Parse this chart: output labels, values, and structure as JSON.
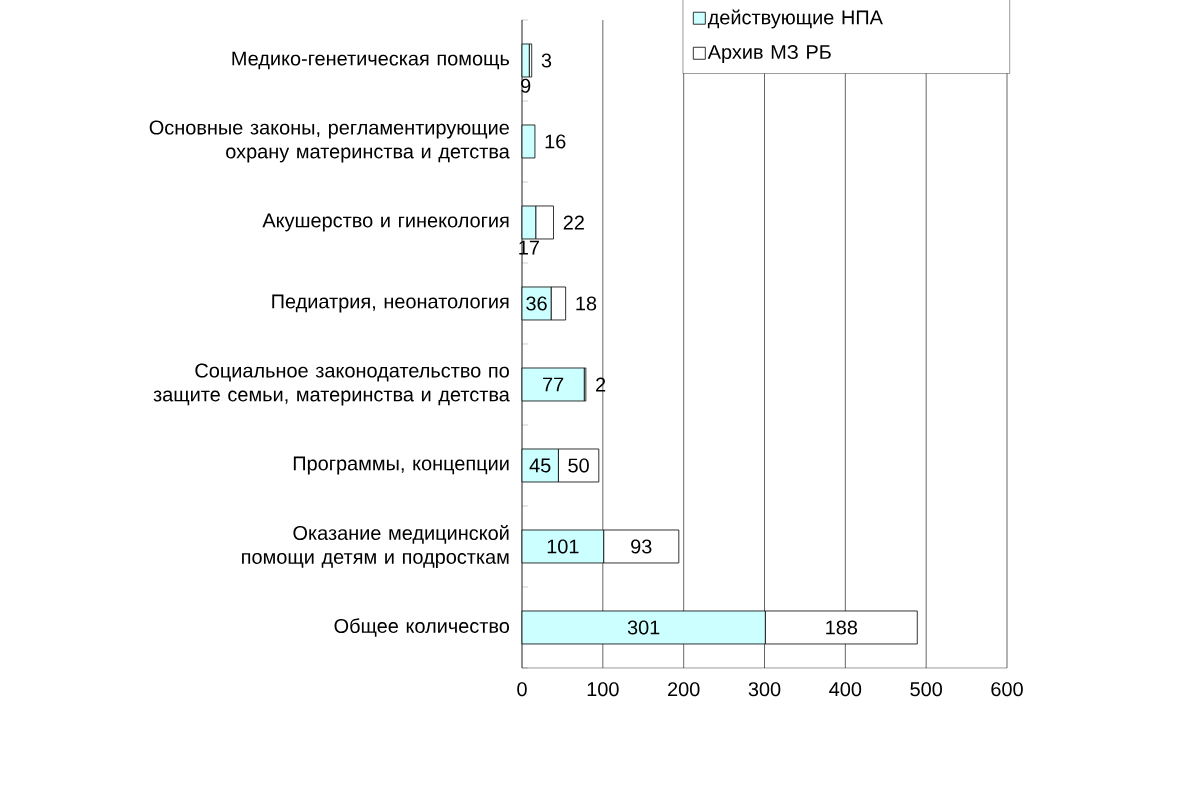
{
  "chart_data": {
    "type": "bar",
    "orientation": "horizontal",
    "stacked": true,
    "categories": [
      "Медико-генетическая помощь",
      "Основные законы, регламентирующие охрану материнства и детства",
      "Акушерство и гинекология",
      "Педиатрия,  неонатология",
      "Социальное законодательство по защите семьи, материнства и детства",
      "Программы, концепции",
      "Оказание медицинской помощи детям и подросткам",
      "Общее количество"
    ],
    "series": [
      {
        "name": "действующие НПА",
        "color": "#ccffff",
        "values": [
          9,
          16,
          17,
          36,
          77,
          45,
          101,
          301
        ]
      },
      {
        "name": "Архив МЗ РБ",
        "color": "#ffffff",
        "values": [
          3,
          null,
          22,
          18,
          2,
          50,
          93,
          188
        ]
      }
    ],
    "xlim": [
      0,
      600
    ],
    "xticks": [
      0,
      100,
      200,
      300,
      400,
      500,
      600
    ],
    "grid": "x",
    "legend": "top right",
    "data_labels": true
  }
}
